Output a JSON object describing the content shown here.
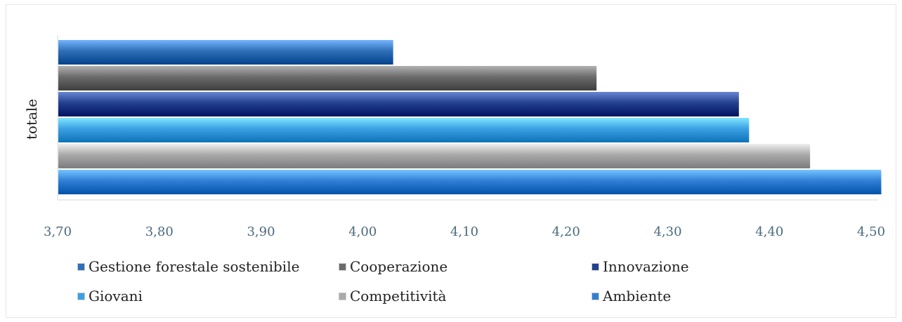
{
  "chart_data": {
    "type": "bar",
    "orientation": "horizontal",
    "categories": [
      "totale"
    ],
    "ylabel": "totale",
    "xlim": [
      3.7,
      4.5
    ],
    "xticks": [
      "3,70",
      "3,80",
      "3,90",
      "4,00",
      "4,10",
      "4,20",
      "4,30",
      "4,40",
      "4,50"
    ],
    "xtick_values": [
      3.7,
      3.8,
      3.9,
      4.0,
      4.1,
      4.2,
      4.3,
      4.4,
      4.5
    ],
    "series": [
      {
        "name": "Gestione forestale sostenibile",
        "values": [
          4.03
        ],
        "color": "#2e6fb8"
      },
      {
        "name": "Cooperazione",
        "values": [
          4.23
        ],
        "color": "#6b6b6b"
      },
      {
        "name": "Innovazione",
        "values": [
          4.37
        ],
        "color": "#23408e"
      },
      {
        "name": "Giovani",
        "values": [
          4.38
        ],
        "color": "#3aa0e3"
      },
      {
        "name": "Competitività",
        "values": [
          4.44
        ],
        "color": "#a9a9a9"
      },
      {
        "name": "Ambiente",
        "values": [
          4.51
        ],
        "color": "#2f7fd6"
      }
    ],
    "grid": false,
    "legend_position": "bottom"
  }
}
